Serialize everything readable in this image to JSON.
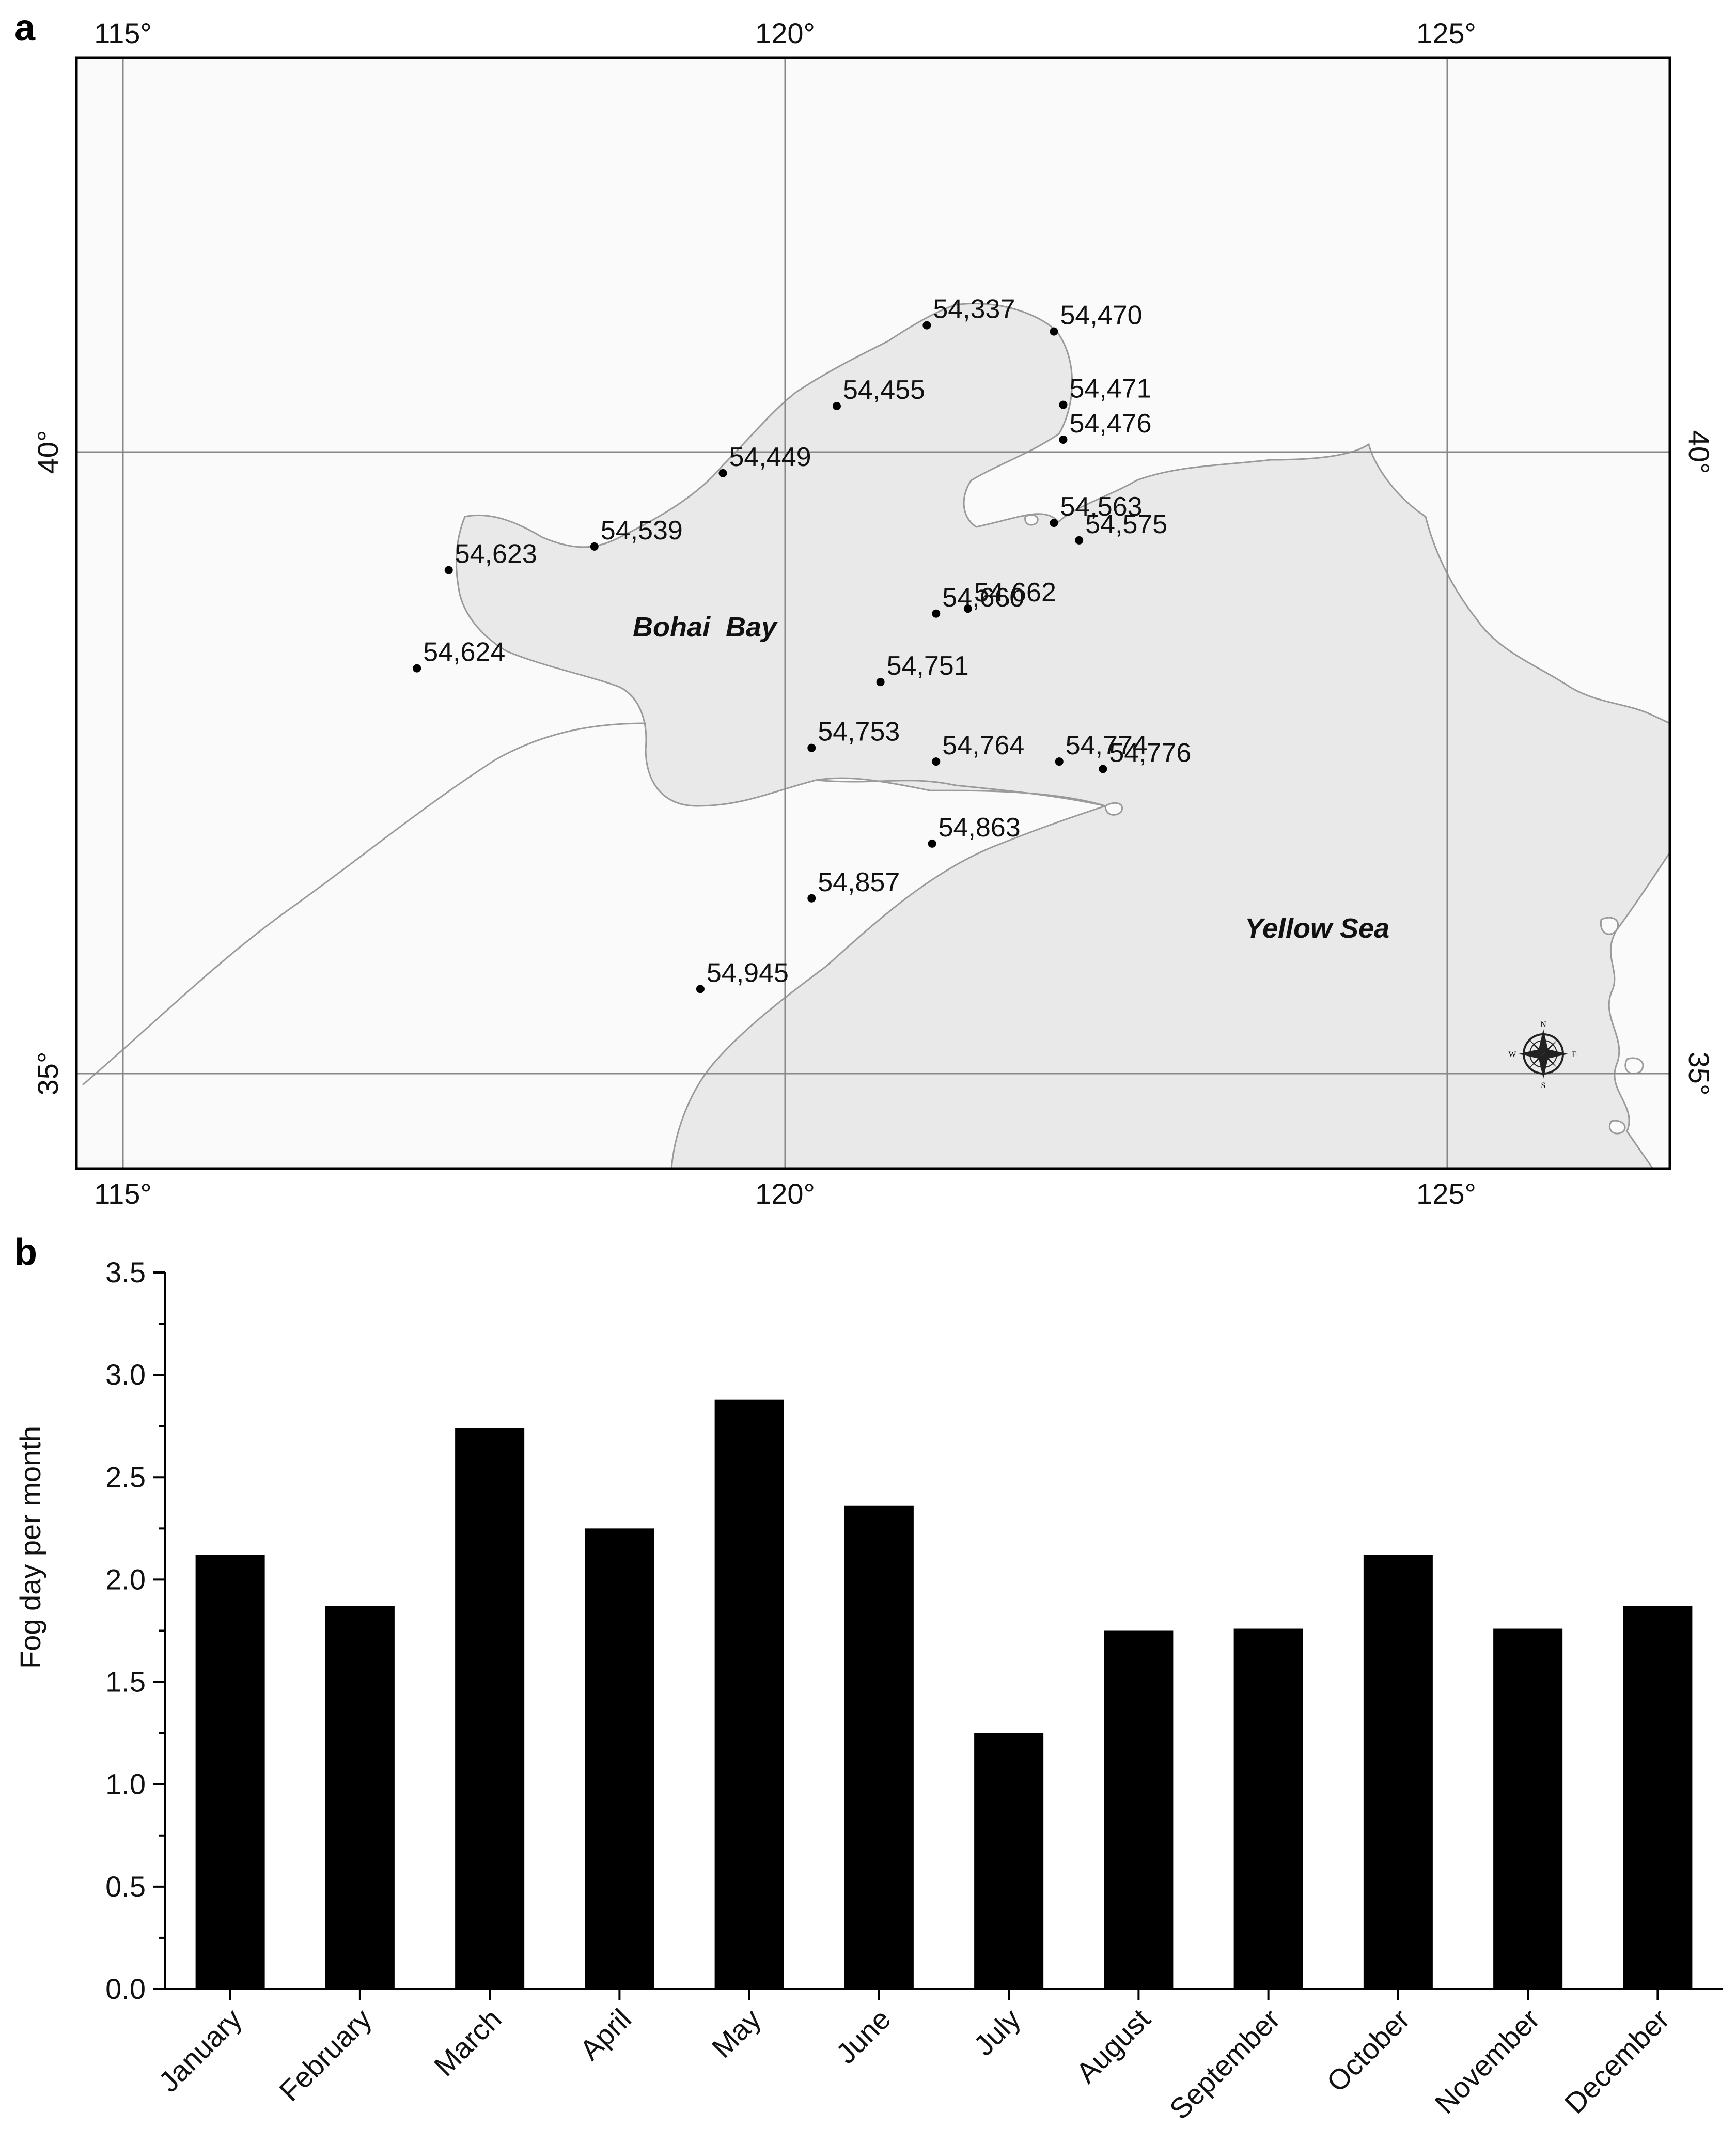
{
  "figure": {
    "panel_a_label": "a",
    "panel_b_label": "b"
  },
  "map": {
    "lon_ticks": [
      "115°",
      "120°",
      "125°"
    ],
    "lat_ticks": [
      "40°",
      "35°"
    ],
    "places": {
      "bohai_bay": "Bohai  Bay",
      "yellow_sea": "Yellow Sea"
    },
    "compass": {
      "n": "N",
      "s": "S",
      "e": "E",
      "w": "W"
    },
    "stations": [
      {
        "id": "54,337",
        "lon": 121.07,
        "lat": 41.02
      },
      {
        "id": "54,470",
        "lon": 122.03,
        "lat": 40.97
      },
      {
        "id": "54,455",
        "lon": 120.39,
        "lat": 40.37
      },
      {
        "id": "54,471",
        "lon": 122.1,
        "lat": 40.38
      },
      {
        "id": "54,476",
        "lon": 122.1,
        "lat": 40.1
      },
      {
        "id": "54,449",
        "lon": 119.53,
        "lat": 39.83
      },
      {
        "id": "54,563",
        "lon": 122.03,
        "lat": 39.43
      },
      {
        "id": "54,575",
        "lon": 122.22,
        "lat": 39.29
      },
      {
        "id": "54,539",
        "lon": 118.56,
        "lat": 39.24
      },
      {
        "id": "54,623",
        "lon": 117.46,
        "lat": 39.05
      },
      {
        "id": "54,660",
        "lon": 121.14,
        "lat": 38.7
      },
      {
        "id": "54,662",
        "lon": 121.38,
        "lat": 38.74
      },
      {
        "id": "54,624",
        "lon": 117.22,
        "lat": 38.26
      },
      {
        "id": "54,751",
        "lon": 120.72,
        "lat": 38.15
      },
      {
        "id": "54,753",
        "lon": 120.2,
        "lat": 37.62
      },
      {
        "id": "54,764",
        "lon": 121.14,
        "lat": 37.51
      },
      {
        "id": "54,774",
        "lon": 122.07,
        "lat": 37.51
      },
      {
        "id": "54,776",
        "lon": 122.4,
        "lat": 37.45
      },
      {
        "id": "54,863",
        "lon": 121.11,
        "lat": 36.85
      },
      {
        "id": "54,857",
        "lon": 120.2,
        "lat": 36.41
      },
      {
        "id": "54,945",
        "lon": 119.36,
        "lat": 35.68
      }
    ]
  },
  "chart_data": {
    "type": "bar",
    "categories": [
      "January",
      "February",
      "March",
      "April",
      "May",
      "June",
      "July",
      "August",
      "September",
      "October",
      "November",
      "December"
    ],
    "values": [
      2.12,
      1.87,
      2.74,
      2.25,
      2.88,
      2.36,
      1.25,
      1.75,
      1.76,
      2.12,
      1.76,
      1.87
    ],
    "ylabel": "Fog day per month",
    "xlabel": "",
    "ylim": [
      0,
      3.5
    ],
    "yticks": [
      "0.0",
      "0.5",
      "1.0",
      "1.5",
      "2.0",
      "2.5",
      "3.0",
      "3.5"
    ],
    "bar_color": "#000000",
    "grid": false
  },
  "colors": {
    "sea": "#e9e9e9",
    "land": "#fafafa",
    "frame": "#000000"
  }
}
